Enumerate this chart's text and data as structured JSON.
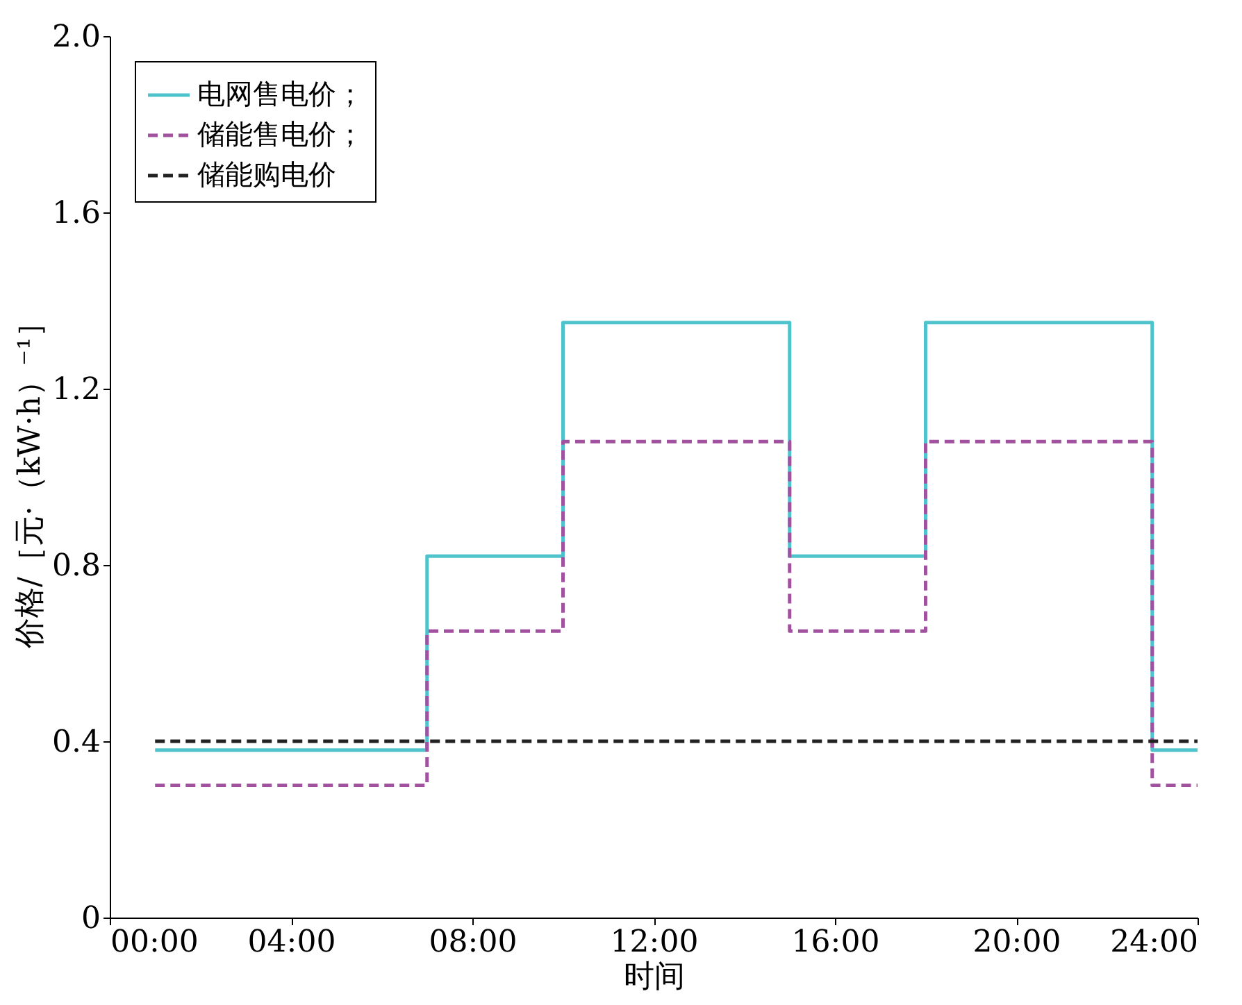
{
  "chart_data": {
    "type": "step",
    "xlabel": "时间",
    "ylabel": "价格/［元·（kW·h）⁻¹］",
    "xlim": [
      0,
      24
    ],
    "xticks": [
      {
        "value": 0,
        "label": "00:00"
      },
      {
        "value": 4,
        "label": "04:00"
      },
      {
        "value": 8,
        "label": "08:00"
      },
      {
        "value": 12,
        "label": "12:00"
      },
      {
        "value": 16,
        "label": "16:00"
      },
      {
        "value": 20,
        "label": "20:00"
      },
      {
        "value": 24,
        "label": "24:00"
      }
    ],
    "ylim": [
      0,
      2
    ],
    "yticks": [
      0,
      0.4,
      0.8,
      1.2,
      1.6,
      {
        "value": 2,
        "label": "2.0"
      }
    ],
    "grid": false,
    "legend": "top left",
    "series": [
      {
        "name": "电网售电价；",
        "color": "#4ec3cc",
        "line_style": "solid",
        "x": [
          1,
          7,
          10,
          15,
          18,
          23,
          24
        ],
        "values": [
          0.38,
          0.82,
          1.35,
          0.82,
          1.35,
          0.38,
          0.38
        ]
      },
      {
        "name": "储能售电价；",
        "color": "#a0529e",
        "line_style": "dashed",
        "x": [
          1,
          7,
          10,
          15,
          18,
          23,
          24
        ],
        "values": [
          0.3,
          0.65,
          1.08,
          0.65,
          1.08,
          0.3,
          0.3
        ]
      },
      {
        "name": "储能购电价",
        "color": "#222222",
        "line_style": "dashed",
        "x": [
          1,
          24
        ],
        "values": [
          0.4,
          0.4
        ]
      }
    ]
  }
}
